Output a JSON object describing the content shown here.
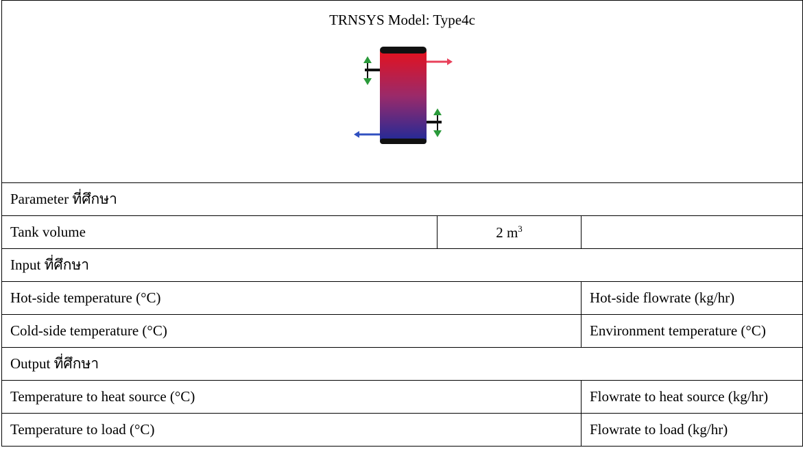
{
  "header": {
    "title": "TRNSYS Model: Type4c"
  },
  "table": {
    "rows": [
      [
        "Parameter ที่ศึกษา"
      ],
      [
        "Tank volume",
        {
          "text": "2 m",
          "sup": "3"
        },
        ""
      ],
      [
        "Input ที่ศึกษา"
      ],
      [
        "Hot-side temperature (°C)",
        "Hot-side flowrate (kg/hr)"
      ],
      [
        "Cold-side temperature (°C)",
        "Environment temperature (°C)"
      ],
      [
        "Output ที่ศึกษา"
      ],
      [
        "Temperature to heat source (°C)",
        "Flowrate to heat source (kg/hr)"
      ],
      [
        "Temperature to load (°C)",
        "Flowrate to load (kg/hr)"
      ]
    ]
  }
}
